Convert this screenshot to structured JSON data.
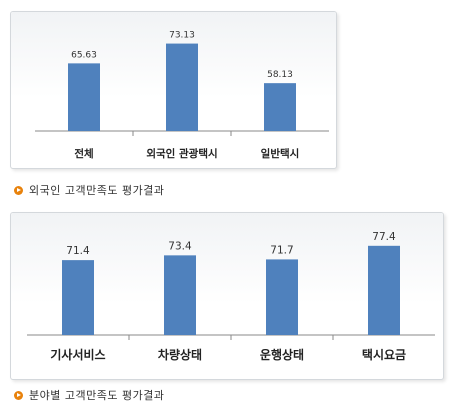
{
  "chart_data": [
    {
      "type": "bar",
      "categories": [
        "전체",
        "외국인 관광택시",
        "일반택시"
      ],
      "values": [
        65.63,
        73.13,
        58.13
      ],
      "data_labels": [
        "65.63",
        "73.13",
        "58.13"
      ],
      "title": "외국인 고객만족도 평가결과",
      "xlabel": "",
      "ylabel": "",
      "ylim": [
        40,
        76
      ],
      "grid": false,
      "bar_color": "#4f81bd"
    },
    {
      "type": "bar",
      "categories": [
        "기사서비스",
        "차량상태",
        "운행상태",
        "택시요금"
      ],
      "values": [
        71.4,
        73.4,
        71.7,
        77.4
      ],
      "data_labels": [
        "71.4",
        "73.4",
        "71.7",
        "77.4"
      ],
      "title": "분야별 고객만족도 평가결과",
      "xlabel": "",
      "ylabel": "",
      "ylim": [
        40,
        79
      ],
      "grid": false,
      "bar_color": "#4f81bd"
    }
  ],
  "captions": {
    "chart1": "외국인 고객만족도 평가결과",
    "chart2": "분야별 고객만족도 평가결과"
  },
  "icons": {
    "caption_bullet": "orange-arrow-bullet-icon"
  }
}
